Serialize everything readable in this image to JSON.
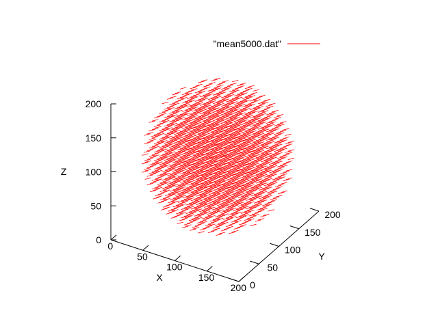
{
  "chart_data": {
    "type": "scatter",
    "subtype": "3d-vector-field",
    "legend": {
      "entries": [
        {
          "label": "\"mean5000.dat\"",
          "color": "#ff0000"
        }
      ],
      "placement": "top-center"
    },
    "axes": {
      "x": {
        "label": "X",
        "range": [
          0,
          200
        ],
        "ticks": [
          0,
          50,
          100,
          150,
          200
        ]
      },
      "y": {
        "label": "Y",
        "range": [
          0,
          200
        ],
        "ticks": [
          0,
          50,
          100,
          150,
          200
        ]
      },
      "z": {
        "label": "Z",
        "range": [
          0,
          200
        ],
        "ticks": [
          0,
          50,
          100,
          150,
          200
        ]
      }
    },
    "series": [
      {
        "name": "\"mean5000.dat\"",
        "color": "#ff0000",
        "shape": "sphere",
        "center": [
          100,
          100,
          100
        ],
        "radius": 100,
        "grid_step": 12.5
      }
    ],
    "grid": false
  }
}
